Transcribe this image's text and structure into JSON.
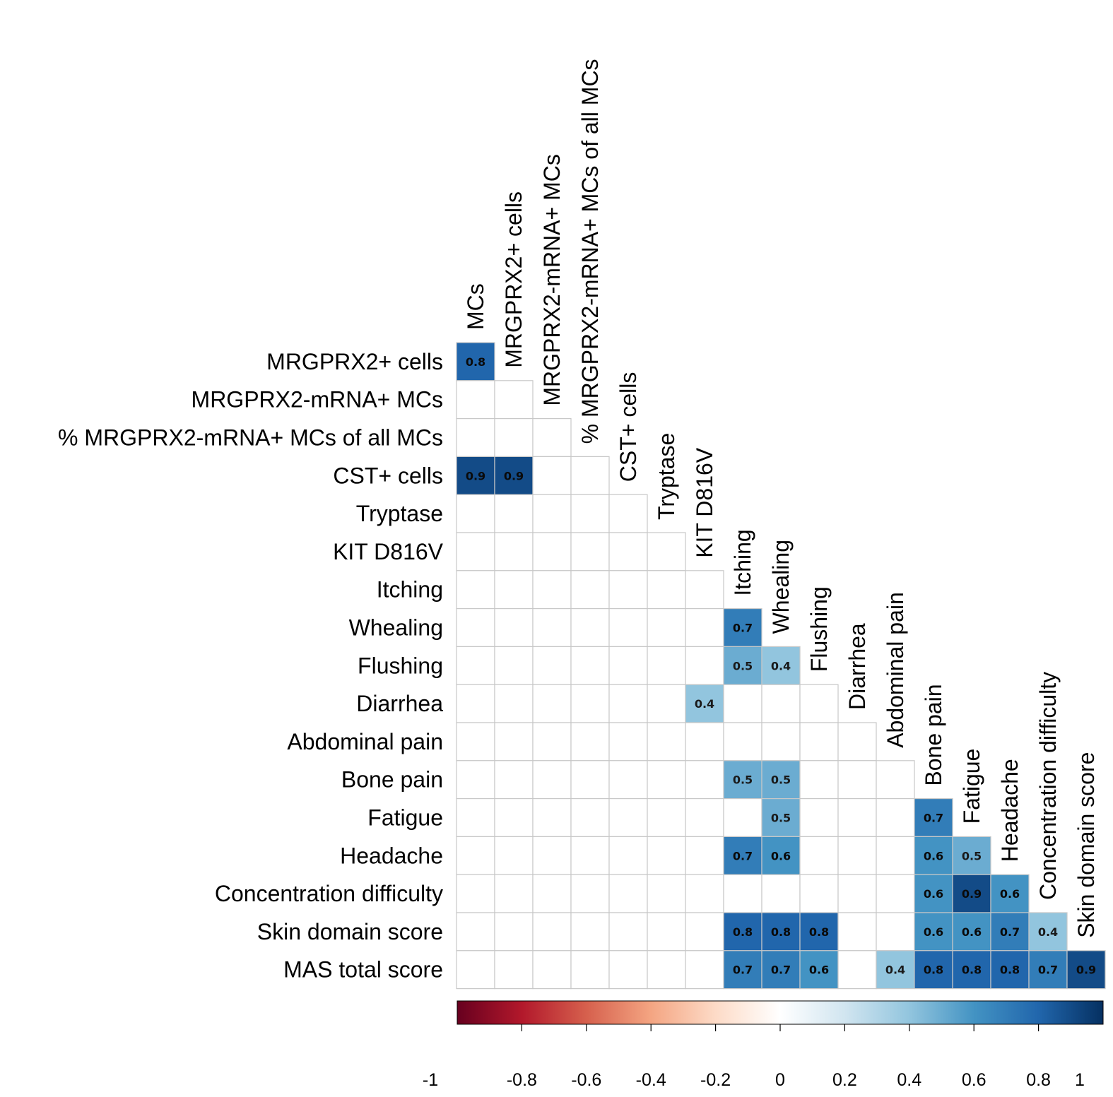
{
  "chart_data": {
    "type": "heatmap",
    "subtype": "lower-triangle correlation matrix",
    "row_labels": [
      "MRGPRX2+ cells",
      "MRGPRX2-mRNA+ MCs",
      "% MRGPRX2-mRNA+  MCs of all MCs",
      "CST+ cells",
      "Tryptase",
      "KIT D816V",
      "Itching",
      "Whealing",
      "Flushing",
      "Diarrhea",
      "Abdominal pain",
      "Bone pain",
      "Fatigue",
      "Headache",
      "Concentration difficulty",
      "Skin domain score",
      "MAS total score"
    ],
    "column_labels": [
      "MCs",
      "MRGPRX2+ cells",
      "MRGPRX2-mRNA+ MCs",
      "% MRGPRX2-mRNA+  MCs of all MCs",
      "CST+ cells",
      "Tryptase",
      "KIT D816V",
      "Itching",
      "Whealing",
      "Flushing",
      "Diarrhea",
      "Abdominal pain",
      "Bone pain",
      "Fatigue",
      "Headache",
      "Concentration difficulty",
      "Skin domain score"
    ],
    "values": [
      [
        0.8
      ],
      [
        null,
        null
      ],
      [
        null,
        null,
        null
      ],
      [
        0.9,
        0.9,
        null,
        null
      ],
      [
        null,
        null,
        null,
        null,
        null
      ],
      [
        null,
        null,
        null,
        null,
        null,
        null
      ],
      [
        null,
        null,
        null,
        null,
        null,
        null,
        null
      ],
      [
        null,
        null,
        null,
        null,
        null,
        null,
        null,
        0.7
      ],
      [
        null,
        null,
        null,
        null,
        null,
        null,
        null,
        0.5,
        0.4
      ],
      [
        null,
        null,
        null,
        null,
        null,
        null,
        0.4,
        null,
        null,
        null
      ],
      [
        null,
        null,
        null,
        null,
        null,
        null,
        null,
        null,
        null,
        null,
        null
      ],
      [
        null,
        null,
        null,
        null,
        null,
        null,
        null,
        0.5,
        0.5,
        null,
        null,
        null
      ],
      [
        null,
        null,
        null,
        null,
        null,
        null,
        null,
        null,
        0.5,
        null,
        null,
        null,
        0.7
      ],
      [
        null,
        null,
        null,
        null,
        null,
        null,
        null,
        0.7,
        0.6,
        null,
        null,
        null,
        0.6,
        0.5
      ],
      [
        null,
        null,
        null,
        null,
        null,
        null,
        null,
        null,
        null,
        null,
        null,
        null,
        0.6,
        0.9,
        0.6
      ],
      [
        null,
        null,
        null,
        null,
        null,
        null,
        null,
        0.8,
        0.8,
        0.8,
        null,
        null,
        0.6,
        0.6,
        0.7,
        0.4
      ],
      [
        null,
        null,
        null,
        null,
        null,
        null,
        null,
        0.7,
        0.7,
        0.6,
        null,
        0.4,
        0.8,
        0.8,
        0.8,
        0.7,
        0.9
      ]
    ],
    "color_scale": {
      "min": -1,
      "max": 1,
      "ticks": [
        -1,
        -0.8,
        -0.6,
        -0.4,
        -0.2,
        0,
        0.2,
        0.4,
        0.6,
        0.8,
        1
      ],
      "low_color": "#67001f",
      "mid_color": "#ffffff",
      "high_color": "#053061"
    },
    "title": "",
    "legend": "bottom"
  }
}
